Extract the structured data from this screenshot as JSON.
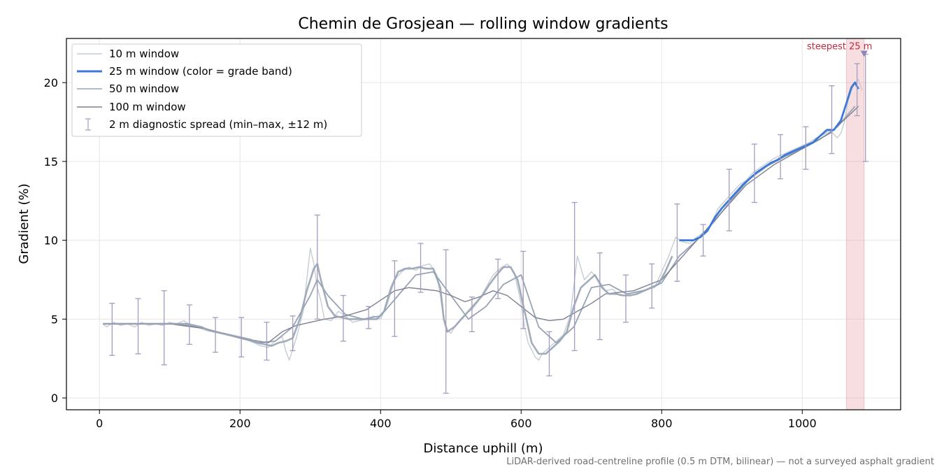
{
  "colors": {
    "w10": "#c4ccd6",
    "w25": "#3b78d8",
    "w50": "#98a4b4",
    "w100": "#7a8190",
    "errbar": "#a49cbf",
    "highlight": "#e8a0a8",
    "steep_text": "#c8283a",
    "steep_marker": "#8f86b8",
    "grid": "#e6e6e6",
    "footnote": "#707070"
  },
  "chart_data": {
    "type": "line",
    "title": "Chemin de Grosjean — rolling window gradients",
    "xlabel": "Distance uphill (m)",
    "ylabel": "Gradient (%)",
    "xlim": [
      -47,
      1140
    ],
    "ylim": [
      -0.75,
      22.8
    ],
    "xticks": [
      0,
      200,
      400,
      600,
      800,
      1000
    ],
    "yticks": [
      0,
      5,
      10,
      15,
      20
    ],
    "grid": true,
    "legend_position": "top-left",
    "legend": [
      "10 m window",
      "25 m window (color = grade band)",
      "50 m window",
      "100 m window",
      "2 m diagnostic spread (min–max, ±12 m)"
    ],
    "series": [
      {
        "name": "10 m window",
        "x": [
          5,
          10,
          20,
          30,
          40,
          50,
          60,
          70,
          80,
          90,
          100,
          110,
          120,
          130,
          140,
          150,
          160,
          170,
          180,
          190,
          200,
          210,
          220,
          230,
          240,
          250,
          260,
          265,
          270,
          280,
          290,
          295,
          300,
          305,
          310,
          315,
          320,
          330,
          340,
          350,
          360,
          370,
          380,
          390,
          400,
          410,
          420,
          430,
          440,
          450,
          460,
          470,
          480,
          485,
          490,
          495,
          500,
          510,
          520,
          530,
          540,
          550,
          560,
          570,
          580,
          590,
          600,
          605,
          610,
          620,
          625,
          630,
          640,
          650,
          660,
          670,
          680,
          690,
          700,
          710,
          720,
          730,
          740,
          750,
          760,
          770,
          780,
          790,
          800,
          810,
          820,
          830,
          840,
          850,
          860,
          870,
          880,
          890,
          900,
          910,
          920,
          930,
          940,
          950,
          960,
          970,
          980,
          990,
          1000,
          1010,
          1020,
          1030,
          1040,
          1045,
          1050,
          1055,
          1060,
          1065,
          1070,
          1075,
          1080,
          1085
        ],
        "y": [
          4.7,
          4.5,
          4.8,
          4.6,
          4.7,
          4.5,
          4.8,
          4.6,
          4.7,
          4.6,
          4.8,
          4.7,
          4.9,
          4.6,
          4.5,
          4.3,
          4.2,
          4.1,
          4.0,
          3.9,
          3.8,
          3.7,
          3.5,
          3.3,
          3.2,
          3.6,
          3.9,
          3.0,
          2.4,
          3.8,
          5.5,
          7.5,
          9.5,
          8.5,
          7.0,
          6.2,
          5.0,
          4.9,
          5.5,
          5.2,
          4.8,
          4.9,
          5.0,
          5.2,
          5.0,
          6.0,
          7.5,
          8.0,
          8.3,
          8.1,
          8.4,
          8.5,
          7.8,
          6.5,
          5.0,
          4.3,
          4.1,
          4.8,
          5.3,
          5.6,
          6.2,
          7.0,
          7.8,
          8.2,
          8.5,
          8.0,
          6.0,
          4.5,
          3.5,
          2.6,
          2.4,
          2.8,
          3.2,
          3.6,
          4.0,
          5.2,
          9.0,
          7.5,
          8.0,
          7.5,
          6.8,
          6.9,
          6.5,
          6.5,
          6.7,
          6.8,
          6.9,
          7.0,
          8.0,
          9.0,
          10.2,
          9.9,
          9.8,
          10.2,
          10.5,
          11.0,
          12.0,
          12.5,
          13.0,
          13.5,
          13.8,
          14.3,
          14.6,
          14.9,
          15.2,
          15.4,
          15.6,
          15.8,
          16.0,
          16.2,
          16.5,
          16.7,
          17.0,
          16.7,
          16.5,
          16.8,
          17.5,
          18.8,
          19.5,
          20.0,
          20.2,
          19.5
        ]
      },
      {
        "name": "25 m window (color = grade band)",
        "x": [
          5,
          15,
          25,
          35,
          45,
          55,
          65,
          75,
          85,
          95,
          105,
          115,
          125,
          135,
          145,
          155,
          165,
          175,
          185,
          195,
          205,
          215,
          225,
          235,
          245,
          255,
          265,
          275,
          285,
          295,
          305,
          310,
          315,
          325,
          335,
          345,
          355,
          365,
          375,
          385,
          395,
          405,
          415,
          425,
          435,
          445,
          455,
          465,
          475,
          485,
          490,
          495,
          505,
          515,
          525,
          535,
          545,
          555,
          565,
          575,
          585,
          595,
          605,
          615,
          625,
          635,
          645,
          655,
          665,
          675,
          685,
          695,
          705,
          715,
          725,
          735,
          745,
          755,
          765,
          775,
          785,
          795,
          805,
          815,
          825,
          835,
          845,
          855,
          865,
          875,
          885,
          895,
          905,
          915,
          925,
          935,
          945,
          955,
          965,
          975,
          985,
          995,
          1005,
          1015,
          1025,
          1035,
          1045,
          1055,
          1060,
          1065,
          1070,
          1075,
          1080
        ],
        "y": [
          4.7,
          4.7,
          4.7,
          4.7,
          4.7,
          4.7,
          4.7,
          4.7,
          4.7,
          4.7,
          4.7,
          4.7,
          4.7,
          4.6,
          4.5,
          4.3,
          4.2,
          4.1,
          4.0,
          3.9,
          3.8,
          3.7,
          3.5,
          3.4,
          3.3,
          3.5,
          3.6,
          3.8,
          5.0,
          6.8,
          8.2,
          8.5,
          7.5,
          5.8,
          5.2,
          5.1,
          5.0,
          5.0,
          5.0,
          5.0,
          5.0,
          5.5,
          7.0,
          8.0,
          8.2,
          8.2,
          8.3,
          8.2,
          8.2,
          7.0,
          5.0,
          4.2,
          4.5,
          5.0,
          5.5,
          6.0,
          6.5,
          7.2,
          7.8,
          8.3,
          8.3,
          7.5,
          5.5,
          3.5,
          2.8,
          2.8,
          3.2,
          3.6,
          4.2,
          5.8,
          7.0,
          7.4,
          7.8,
          7.0,
          6.6,
          6.6,
          6.5,
          6.5,
          6.6,
          6.8,
          7.0,
          7.2,
          8.0,
          9.0,
          10.0,
          10.0,
          10.0,
          10.2,
          10.6,
          11.4,
          12.0,
          12.5,
          13.0,
          13.5,
          13.9,
          14.3,
          14.6,
          14.9,
          15.1,
          15.4,
          15.6,
          15.8,
          16.0,
          16.2,
          16.6,
          17.0,
          17.0,
          17.6,
          18.3,
          19.0,
          19.7,
          20.0,
          19.6
        ]
      },
      {
        "name": "50 m window",
        "x": [
          5,
          25,
          50,
          75,
          100,
          125,
          150,
          175,
          200,
          225,
          250,
          275,
          300,
          310,
          325,
          350,
          375,
          400,
          425,
          450,
          475,
          500,
          525,
          550,
          575,
          600,
          625,
          650,
          675,
          700,
          725,
          750,
          775,
          800,
          825,
          850,
          875,
          900,
          925,
          950,
          975,
          1000,
          1025,
          1050,
          1075
        ],
        "y": [
          4.7,
          4.7,
          4.7,
          4.7,
          4.7,
          4.6,
          4.4,
          4.1,
          3.8,
          3.5,
          3.6,
          4.5,
          6.5,
          7.5,
          6.5,
          5.3,
          5.0,
          5.2,
          6.5,
          7.8,
          8.0,
          6.5,
          5.0,
          5.8,
          7.2,
          7.8,
          4.5,
          3.5,
          4.5,
          7.0,
          7.2,
          6.6,
          6.8,
          7.3,
          9.0,
          10.0,
          11.2,
          12.6,
          13.9,
          14.7,
          15.3,
          15.8,
          16.4,
          17.2,
          18.5
        ]
      },
      {
        "name": "100 m window",
        "x": [
          5,
          50,
          100,
          150,
          200,
          240,
          260,
          280,
          300,
          320,
          350,
          380,
          420,
          440,
          460,
          480,
          500,
          520,
          540,
          560,
          580,
          600,
          620,
          640,
          660,
          680,
          700,
          720,
          760,
          800,
          840,
          880,
          920,
          960,
          1000,
          1040,
          1080
        ],
        "y": [
          4.7,
          4.7,
          4.7,
          4.4,
          3.8,
          3.5,
          4.2,
          4.6,
          4.8,
          5.0,
          5.2,
          5.6,
          6.8,
          7.0,
          6.9,
          6.8,
          6.5,
          6.1,
          6.4,
          6.8,
          6.5,
          5.8,
          5.1,
          4.9,
          5.0,
          5.5,
          6.0,
          6.6,
          6.8,
          7.5,
          9.5,
          11.5,
          13.5,
          14.8,
          15.8,
          16.8,
          18.5
        ]
      }
    ],
    "diagnostic_spread": {
      "x": [
        18,
        55,
        92,
        128,
        165,
        202,
        238,
        275,
        310,
        347,
        383,
        420,
        457,
        493,
        530,
        567,
        603,
        640,
        676,
        712,
        749,
        786,
        822,
        859,
        896,
        932,
        969,
        1005,
        1042,
        1078,
        1090
      ],
      "lo": [
        2.7,
        2.8,
        2.1,
        3.4,
        2.9,
        2.6,
        2.4,
        3.0,
        5.0,
        3.6,
        4.4,
        3.9,
        6.7,
        0.3,
        4.2,
        6.3,
        4.4,
        1.4,
        3.0,
        3.7,
        4.8,
        5.7,
        7.4,
        9.0,
        10.6,
        12.4,
        13.9,
        14.5,
        15.5,
        17.9,
        15.0
      ],
      "hi": [
        6.0,
        6.3,
        6.8,
        5.9,
        5.1,
        5.1,
        4.8,
        5.2,
        11.6,
        6.5,
        5.8,
        8.7,
        9.8,
        9.4,
        6.4,
        8.8,
        9.3,
        4.2,
        12.4,
        9.2,
        7.8,
        8.5,
        12.3,
        11.0,
        14.5,
        16.1,
        16.7,
        17.2,
        19.8,
        21.2,
        21.8
      ]
    },
    "annotation": {
      "text": "steepest 25 m",
      "span": [
        1063,
        1088
      ],
      "point": [
        1088,
        21.8
      ]
    }
  },
  "footnote": "LiDAR-derived road-centreline profile (0.5 m DTM, bilinear) — not a surveyed asphalt gradient"
}
